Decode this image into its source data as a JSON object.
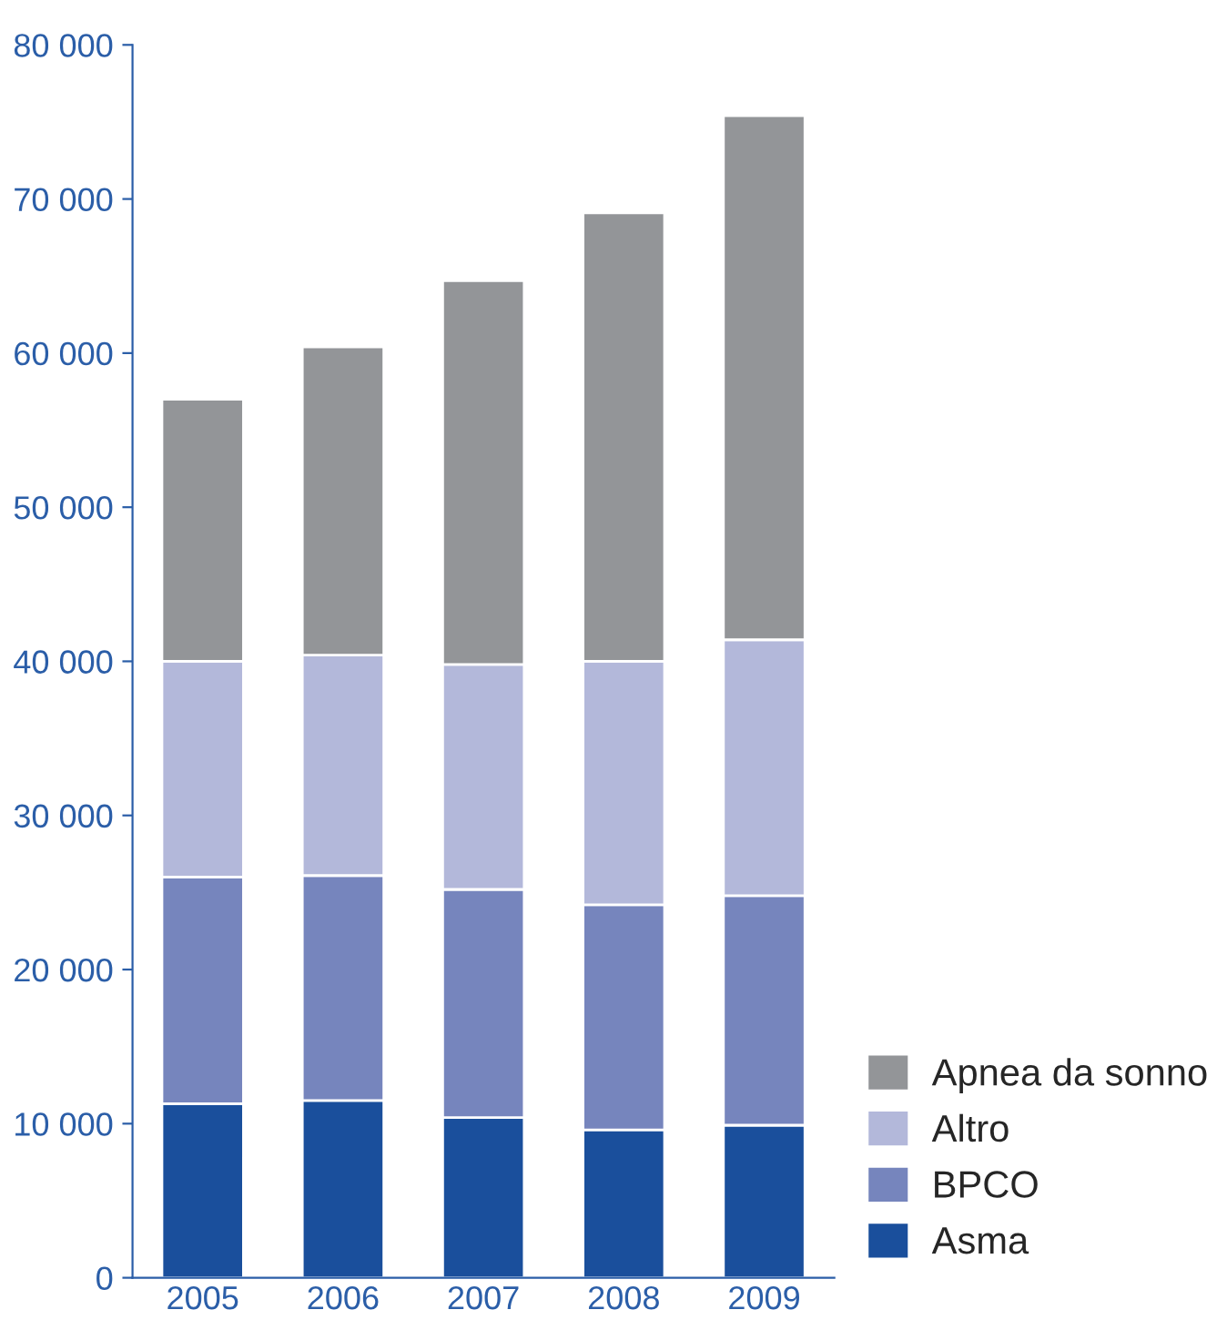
{
  "chart_data": {
    "type": "bar",
    "stacked": true,
    "categories": [
      "2005",
      "2006",
      "2007",
      "2008",
      "2009"
    ],
    "series": [
      {
        "name": "Asma",
        "color": "#1a4f9c",
        "values": [
          11300,
          11500,
          10400,
          9600,
          9900
        ]
      },
      {
        "name": "BPCO",
        "color": "#7685bd",
        "values": [
          14700,
          14600,
          14800,
          14600,
          14900
        ]
      },
      {
        "name": "Altro",
        "color": "#b3b8da",
        "values": [
          14000,
          14300,
          14600,
          15800,
          16600
        ]
      },
      {
        "name": "Apnea da sonno",
        "color": "#939598",
        "values": [
          17000,
          20000,
          24900,
          29100,
          34000
        ]
      }
    ],
    "ylim": [
      0,
      80000
    ],
    "yticks": [
      0,
      {
        "value": 10000,
        "label": "10 000"
      },
      {
        "value": 20000,
        "label": "20 000"
      },
      {
        "value": 30000,
        "label": "30 000"
      },
      {
        "value": 40000,
        "label": "40 000"
      },
      {
        "value": 50000,
        "label": "50 000"
      },
      {
        "value": 60000,
        "label": "60 000"
      },
      {
        "value": 70000,
        "label": "70 000"
      },
      {
        "value": 80000,
        "label": "80 000"
      }
    ],
    "grid": false,
    "legend": "bottom right"
  }
}
